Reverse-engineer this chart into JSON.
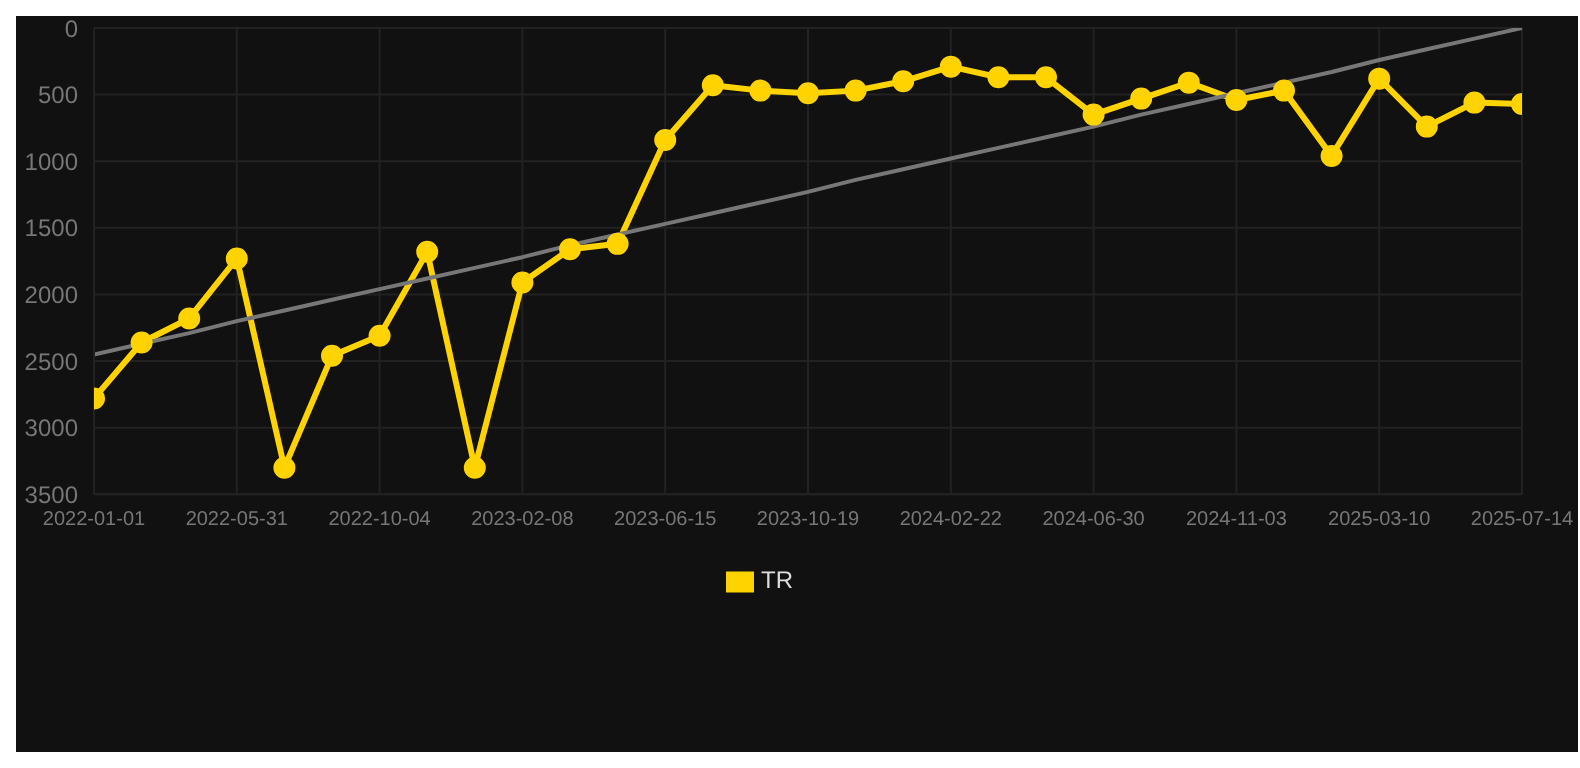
{
  "chart_data": {
    "type": "line",
    "categories": [
      "2022-01-01",
      null,
      null,
      "2022-05-31",
      null,
      null,
      "2022-10-04",
      null,
      null,
      "2023-02-08",
      null,
      null,
      "2023-06-15",
      null,
      null,
      "2023-10-19",
      null,
      null,
      "2024-02-22",
      null,
      null,
      "2024-06-30",
      null,
      null,
      "2024-11-03",
      null,
      null,
      "2025-03-10",
      null,
      null,
      "2025-07-14"
    ],
    "series": [
      {
        "name": "TR",
        "color": "#ffd300",
        "marker": "circle",
        "values": [
          2780,
          2360,
          2180,
          1730,
          3300,
          2460,
          2310,
          1680,
          3300,
          1910,
          1660,
          1620,
          840,
          430,
          470,
          490,
          470,
          400,
          290,
          370,
          370,
          650,
          530,
          410,
          540,
          470,
          960,
          380,
          740,
          560,
          570
        ]
      },
      {
        "type": "line",
        "color": "#777777",
        "marker": "none",
        "values": [
          2450,
          2370,
          2290,
          2200,
          2120,
          2040,
          1960,
          1880,
          1800,
          1720,
          1630,
          1550,
          1470,
          1390,
          1310,
          1230,
          1140,
          1060,
          980,
          900,
          820,
          740,
          650,
          570,
          490,
          410,
          330,
          240,
          160,
          80,
          0
        ]
      }
    ],
    "ylim": [
      3500,
      0
    ],
    "yticks": [
      0,
      500,
      1000,
      1500,
      2000,
      2500,
      3000,
      3500
    ],
    "grid": true,
    "legend": "bottom",
    "line_style": "solid"
  }
}
